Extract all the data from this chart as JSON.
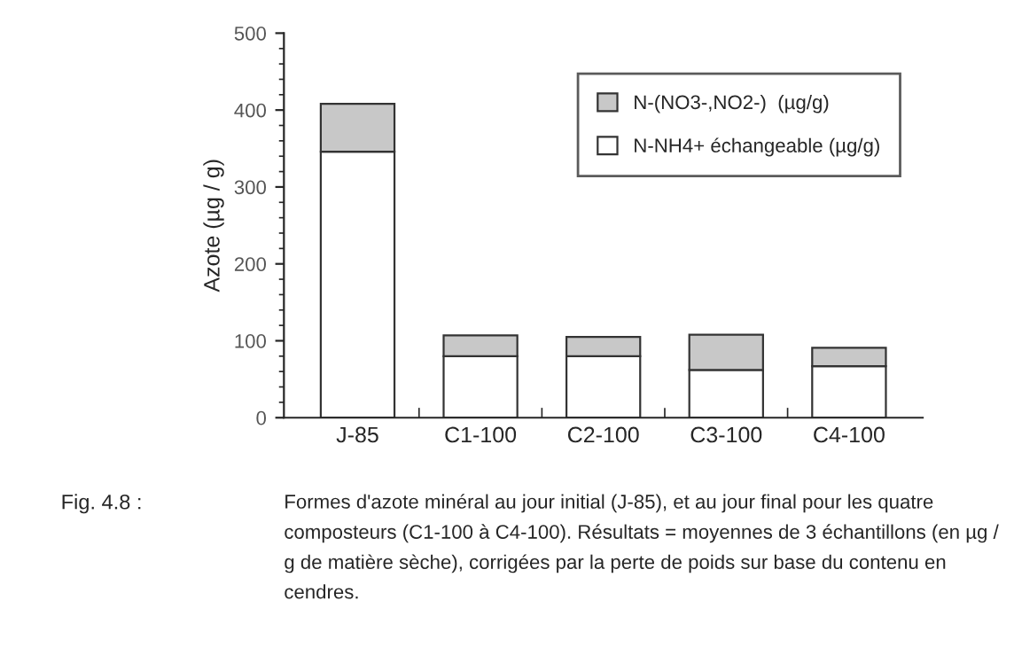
{
  "chart_data": {
    "type": "bar",
    "stacked": true,
    "ylabel": "Azote (µg / g)",
    "categories": [
      "J-85",
      "C1-100",
      "C2-100",
      "C3-100",
      "C4-100"
    ],
    "series": [
      {
        "name": "N-NH4+ échangeable (µg/g)",
        "color": "#ffffff",
        "values": [
          346,
          80,
          80,
          62,
          67
        ]
      },
      {
        "name": "N-(NO3-,NO2-)  (µg/g)",
        "color": "#c8c8c8",
        "values": [
          62,
          27,
          25,
          46,
          24
        ]
      }
    ],
    "ylim": [
      0,
      500
    ],
    "yticks": [
      0,
      100,
      200,
      300,
      400,
      500
    ],
    "grid": false,
    "legend": "top right",
    "annotations": [
      "Fig. 4.8 :",
      "Formes d'azote minéral au jour initial (J-85), et au jour final pour les quatre composteurs (C1-100 à C4-100). Résultats = moyennes de 3 échantillons (en µg / g de matière sèche), corrigées par la perte de poids sur base du contenu en cendres."
    ]
  }
}
